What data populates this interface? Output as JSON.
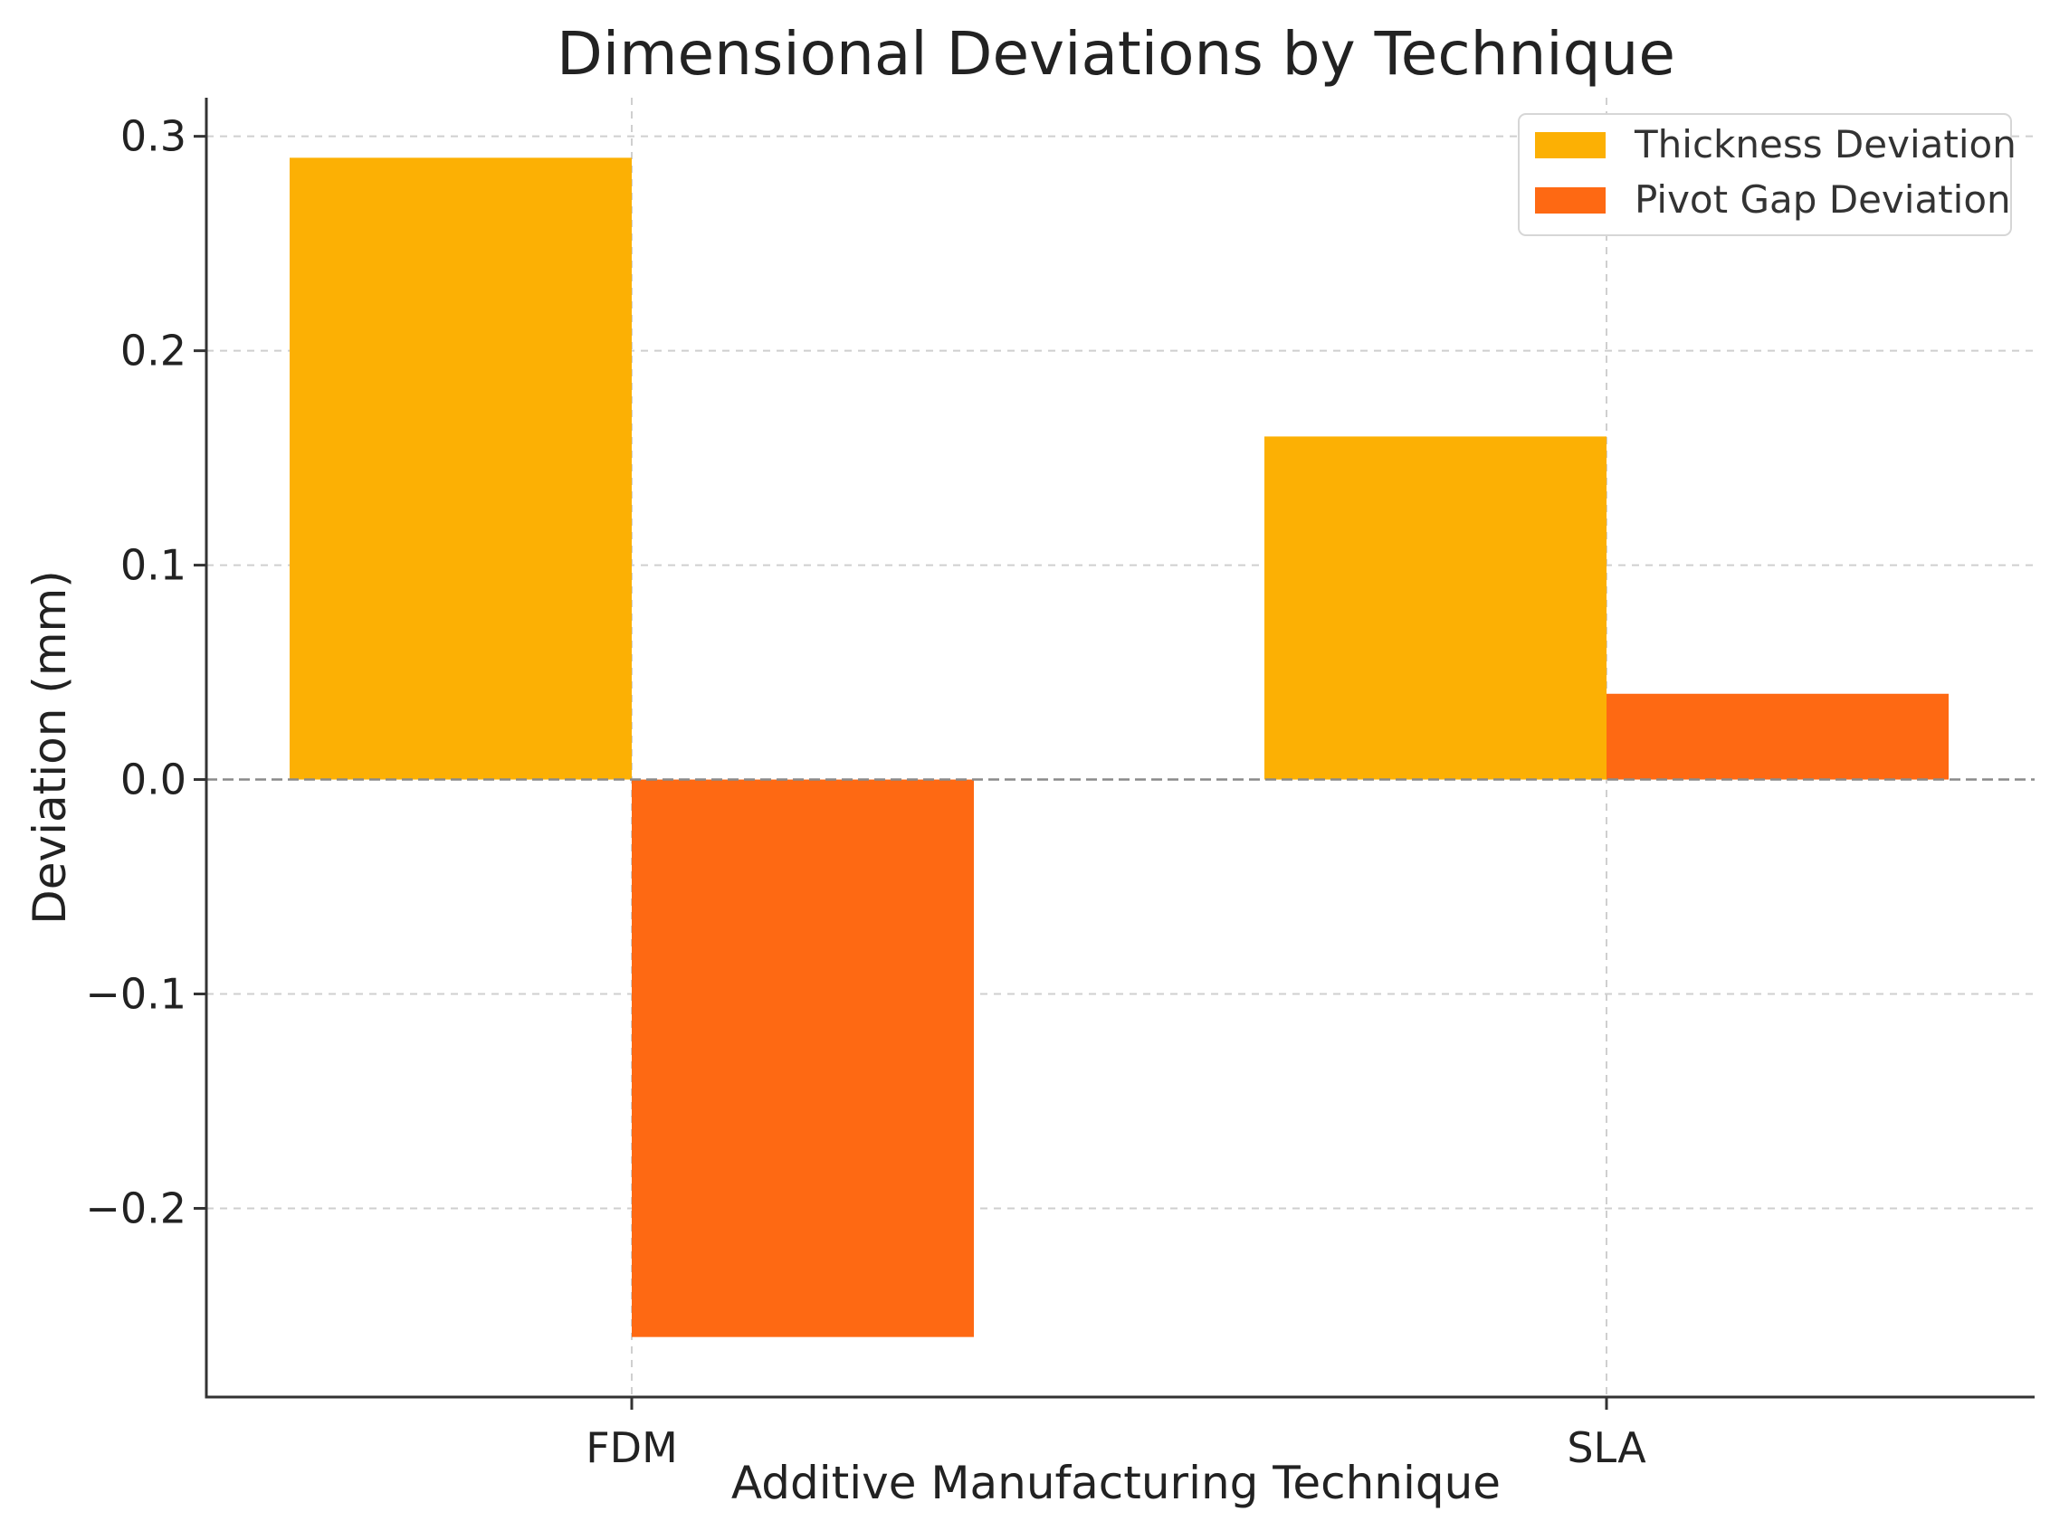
{
  "chart_data": {
    "type": "bar",
    "title": "Dimensional Deviations by Technique",
    "xlabel": "Additive Manufacturing Technique",
    "ylabel": "Deviation (mm)",
    "categories": [
      "FDM",
      "SLA"
    ],
    "series": [
      {
        "name": "Thickness Deviation",
        "color": "#fcb004",
        "values": [
          0.29,
          0.16
        ]
      },
      {
        "name": "Pivot Gap Deviation",
        "color": "#fe6913",
        "values": [
          -0.26,
          0.04
        ]
      }
    ],
    "ylim": [
      -0.288,
      0.318
    ],
    "yticks": [
      0.3,
      0.2,
      0.1,
      0.0,
      -0.1,
      -0.2
    ],
    "ytick_labels": [
      "0.3",
      "0.2",
      "0.1",
      "0.0",
      "−0.1",
      "−0.2"
    ],
    "grid": true,
    "zero_line": true,
    "legend_position": "top-right"
  }
}
